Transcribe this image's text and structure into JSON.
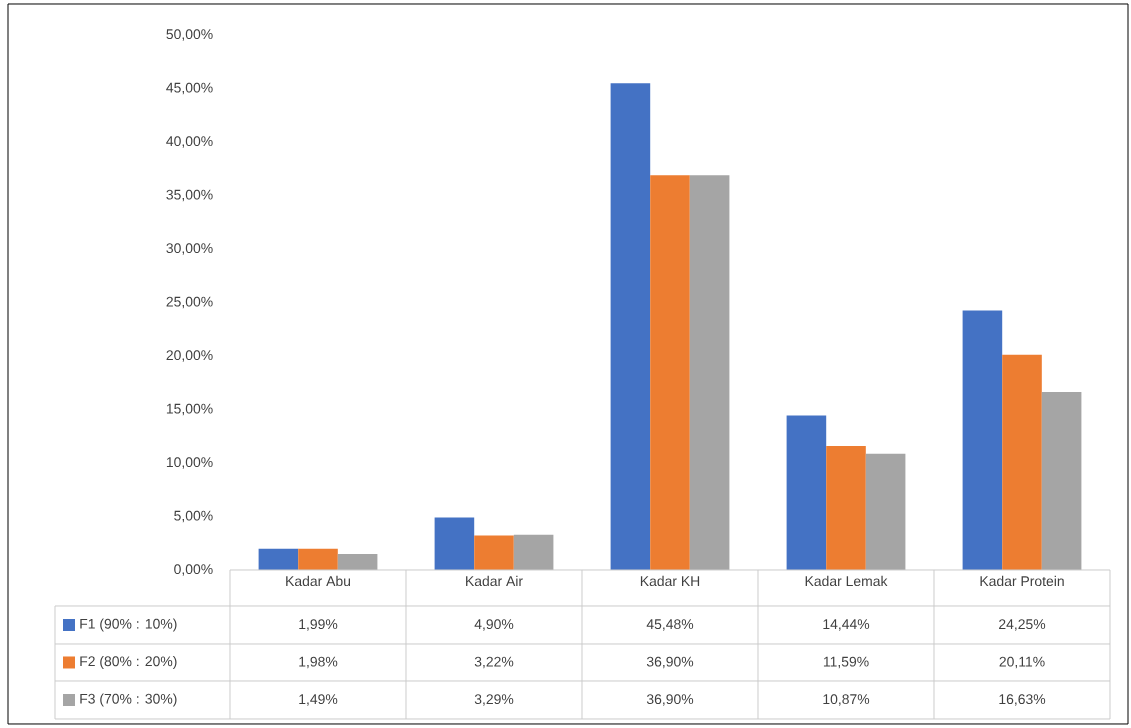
{
  "chart_data": {
    "type": "bar",
    "categories": [
      "Kadar Abu",
      "Kadar Air",
      "Kadar KH",
      "Kadar Lemak",
      "Kadar Protein"
    ],
    "series": [
      {
        "name": "F1 (90% : 10%)",
        "color": "#4472c4",
        "values": [
          1.99,
          4.9,
          45.48,
          14.44,
          24.25
        ],
        "value_labels": [
          "1,99%",
          "4,90%",
          "45,48%",
          "14,44%",
          "24,25%"
        ]
      },
      {
        "name": "F2 (80% : 20%)",
        "color": "#ed7d31",
        "values": [
          1.98,
          3.22,
          36.9,
          11.59,
          20.11
        ],
        "value_labels": [
          "1,98%",
          "3,22%",
          "36,90%",
          "11,59%",
          "20,11%"
        ]
      },
      {
        "name": "F3 (70% : 30%)",
        "color": "#a5a5a5",
        "values": [
          1.49,
          3.29,
          36.9,
          10.87,
          16.63
        ],
        "value_labels": [
          "1,49%",
          "3,29%",
          "36,90%",
          "10,87%",
          "16,63%"
        ]
      }
    ],
    "ylim": [
      0,
      50
    ],
    "yticks": [
      {
        "value": 0,
        "label": "0,00%"
      },
      {
        "value": 5,
        "label": "5,00%"
      },
      {
        "value": 10,
        "label": "10,00%"
      },
      {
        "value": 15,
        "label": "15,00%"
      },
      {
        "value": 20,
        "label": "20,00%"
      },
      {
        "value": 25,
        "label": "25,00%"
      },
      {
        "value": 30,
        "label": "30,00%"
      },
      {
        "value": 35,
        "label": "35,00%"
      },
      {
        "value": 40,
        "label": "40,00%"
      },
      {
        "value": 45,
        "label": "45,00%"
      },
      {
        "value": 50,
        "label": "50,00%"
      }
    ],
    "grid": false,
    "legend": "bottom left"
  }
}
